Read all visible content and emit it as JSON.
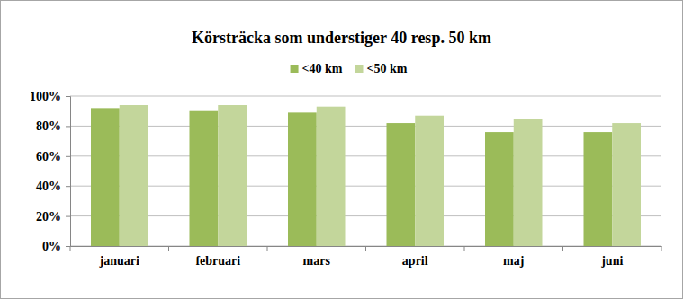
{
  "chart_data": {
    "type": "bar",
    "title": "Körsträcka som understiger 40 resp. 50 km",
    "categories": [
      "januari",
      "februari",
      "mars",
      "april",
      "maj",
      "juni"
    ],
    "series": [
      {
        "name": "<40 km",
        "color": "#9bbb59",
        "values": [
          92,
          90,
          89,
          82,
          76,
          76
        ]
      },
      {
        "name": "<50 km",
        "color": "#c3d69b",
        "values": [
          94,
          94,
          93,
          87,
          85,
          82
        ]
      }
    ],
    "ylim": [
      0,
      100
    ],
    "yticks": [
      {
        "value": 0,
        "label": "0%"
      },
      {
        "value": 20,
        "label": "20%"
      },
      {
        "value": 40,
        "label": "40%"
      },
      {
        "value": 60,
        "label": "60%"
      },
      {
        "value": 80,
        "label": "80%"
      },
      {
        "value": 100,
        "label": "100%"
      }
    ],
    "grid": true,
    "legend": "top"
  }
}
